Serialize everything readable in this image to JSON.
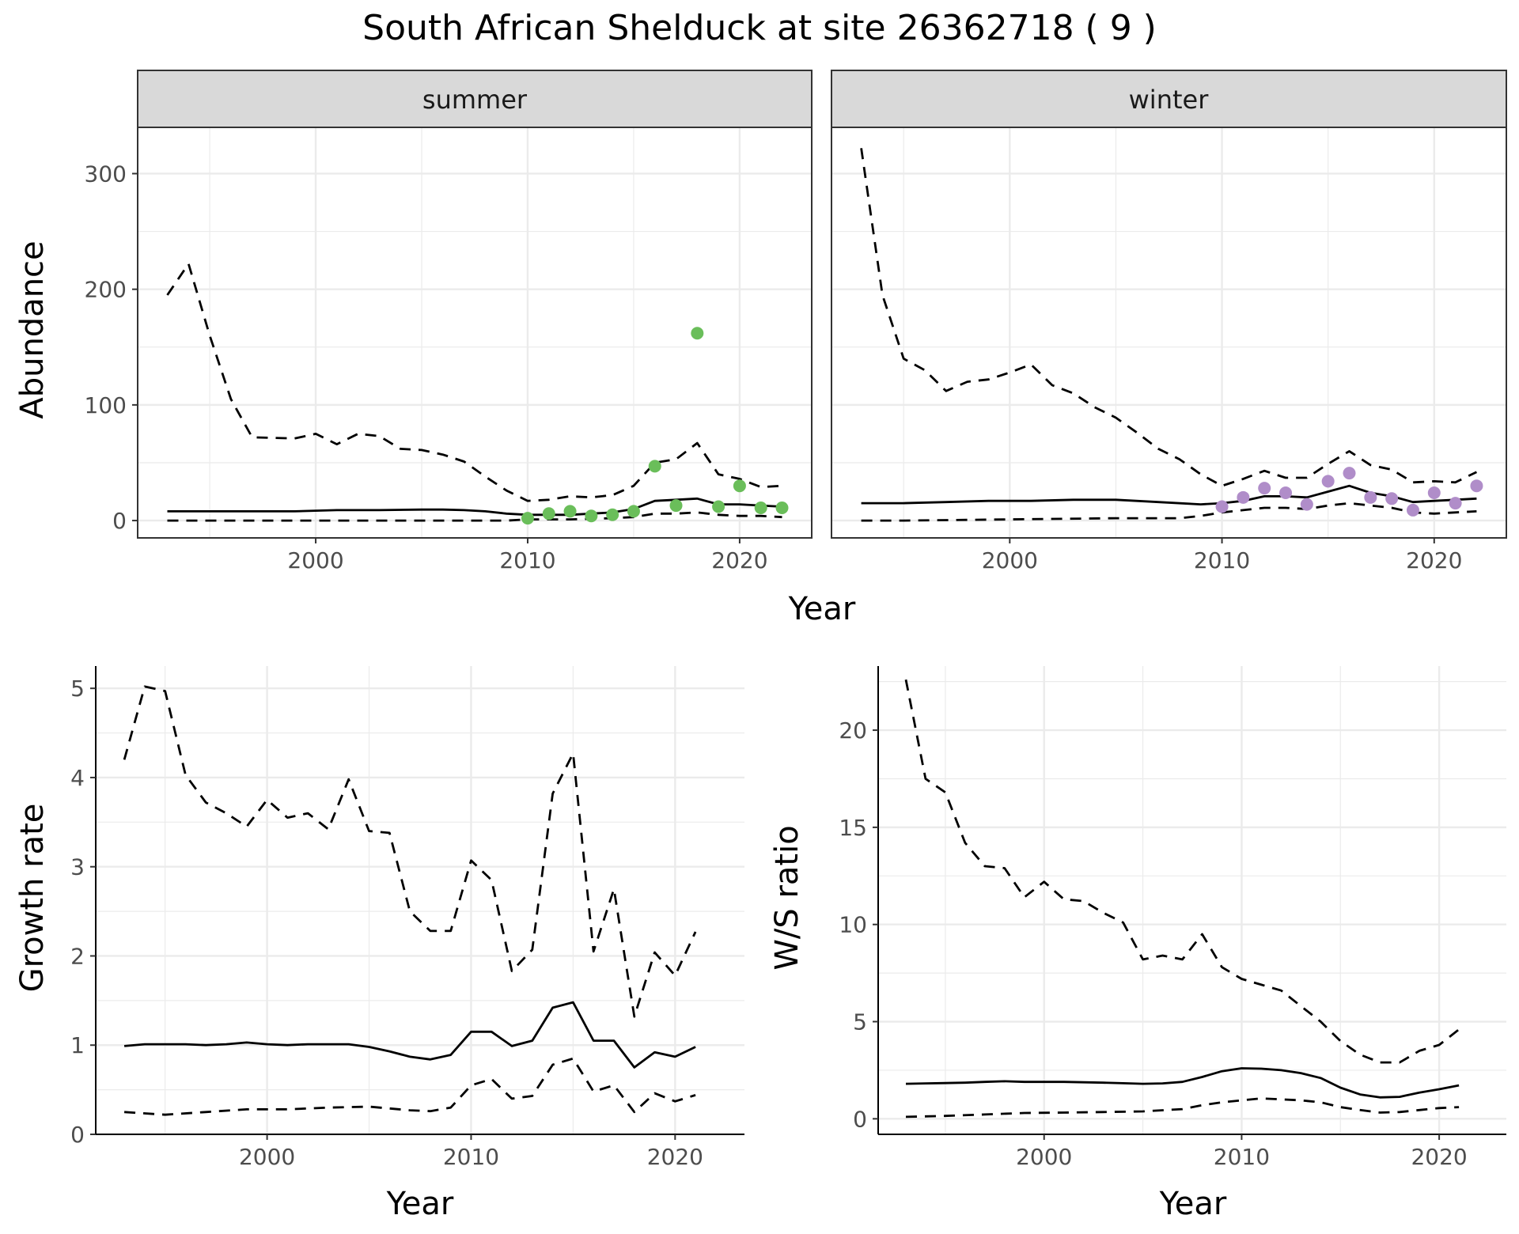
{
  "page": {
    "title": "South African Shelduck at site 26362718 ( 9 )"
  },
  "colors": {
    "summer_points": "#6abe5a",
    "winter_points": "#b08dc9",
    "lines": "#000000"
  },
  "chart_data": [
    {
      "id": "abundance",
      "type": "line",
      "ylabel": "Abundance",
      "xlabel": "Year",
      "xlim": [
        1991.6,
        2023.4
      ],
      "ylim": [
        -15,
        340
      ],
      "xticks": [
        2000,
        2010,
        2020
      ],
      "yticks": [
        0,
        100,
        200,
        300
      ],
      "grid": true,
      "facets": [
        {
          "name": "summer",
          "point_color": "#6abe5a",
          "mean": {
            "x": [
              1993,
              1995,
              1997,
              1999,
              2001,
              2003,
              2005,
              2006,
              2007,
              2008,
              2009,
              2010,
              2011,
              2012,
              2013,
              2014,
              2015,
              2016,
              2017,
              2018,
              2019,
              2020,
              2021,
              2022
            ],
            "y": [
              8,
              8,
              8,
              8,
              9,
              9,
              9.5,
              9.5,
              9,
              8,
              6,
              5,
              5,
              5,
              6,
              7,
              10,
              17,
              18,
              19,
              14,
              14,
              13,
              12
            ]
          },
          "lower": {
            "x": [
              1993,
              2000,
              2009,
              2010,
              2012,
              2014,
              2015,
              2016,
              2017,
              2018,
              2019,
              2020,
              2021,
              2022
            ],
            "y": [
              0,
              0,
              0,
              1,
              1,
              2,
              3,
              6,
              6,
              7,
              5,
              4,
              4,
              3
            ]
          },
          "upper": {
            "x": [
              1993,
              1994,
              1995,
              1996,
              1997,
              1999,
              2000,
              2001,
              2002,
              2003,
              2004,
              2005,
              2006,
              2007,
              2008,
              2009,
              2010,
              2011,
              2012,
              2013,
              2014,
              2015,
              2016,
              2017,
              2018,
              2019,
              2020,
              2021,
              2022
            ],
            "y": [
              195,
              222,
              160,
              105,
              72,
              71,
              75,
              66,
              75,
              73,
              62,
              61,
              57,
              51,
              38,
              26,
              17,
              18,
              21,
              20,
              22,
              30,
              50,
              53,
              67,
              40,
              36,
              29,
              30
            ]
          },
          "observed": {
            "x": [
              2010,
              2011,
              2012,
              2013,
              2014,
              2015,
              2016,
              2017,
              2018,
              2019,
              2020,
              2021,
              2022
            ],
            "y": [
              2,
              6,
              8,
              4,
              5,
              8,
              47,
              13,
              162,
              12,
              30,
              11,
              11
            ]
          }
        },
        {
          "name": "winter",
          "point_color": "#b08dc9",
          "mean": {
            "x": [
              1993,
              1995,
              1997,
              1999,
              2001,
              2003,
              2005,
              2007,
              2009,
              2010,
              2011,
              2012,
              2013,
              2014,
              2015,
              2016,
              2017,
              2018,
              2019,
              2020,
              2021,
              2022
            ],
            "y": [
              15,
              15,
              16,
              17,
              17,
              18,
              18,
              16,
              14,
              15,
              17,
              21,
              21,
              20,
              25,
              30,
              24,
              21,
              16,
              17,
              18,
              19
            ]
          },
          "lower": {
            "x": [
              1993,
              1995,
              2000,
              2005,
              2008,
              2009,
              2010,
              2011,
              2012,
              2013,
              2014,
              2015,
              2016,
              2017,
              2018,
              2019,
              2020,
              2021,
              2022
            ],
            "y": [
              0,
              0,
              1,
              2,
              2,
              4,
              7,
              9,
              11,
              11,
              10,
              13,
              15,
              13,
              11,
              7,
              6,
              7,
              8
            ]
          },
          "upper": {
            "x": [
              1993,
              1994,
              1995,
              1996,
              1997,
              1998,
              1999,
              2000,
              2001,
              2002,
              2003,
              2004,
              2005,
              2006,
              2007,
              2008,
              2009,
              2010,
              2011,
              2012,
              2013,
              2014,
              2015,
              2016,
              2017,
              2018,
              2019,
              2020,
              2021,
              2022
            ],
            "y": [
              322,
              195,
              140,
              130,
              112,
              120,
              122,
              128,
              135,
              117,
              110,
              98,
              89,
              76,
              62,
              53,
              40,
              30,
              36,
              43,
              37,
              37,
              49,
              60,
              48,
              44,
              33,
              34,
              33,
              42
            ]
          },
          "observed": {
            "x": [
              2010,
              2011,
              2012,
              2013,
              2014,
              2015,
              2016,
              2017,
              2018,
              2019,
              2020,
              2021,
              2022
            ],
            "y": [
              12,
              20,
              28,
              24,
              14,
              34,
              41,
              20,
              19,
              9,
              24,
              15,
              30
            ]
          }
        }
      ]
    },
    {
      "id": "growth",
      "type": "line",
      "ylabel": "Growth rate",
      "xlabel": "Year",
      "xlim": [
        1991.6,
        2023.4
      ],
      "ylim": [
        0,
        5.25
      ],
      "xticks": [
        2000,
        2010,
        2020
      ],
      "yticks": [
        0,
        1,
        2,
        3,
        4,
        5
      ],
      "grid": true,
      "mean": {
        "x": [
          1993,
          1994,
          1995,
          1996,
          1997,
          1998,
          1999,
          2000,
          2001,
          2002,
          2003,
          2004,
          2005,
          2006,
          2007,
          2008,
          2009,
          2010,
          2011,
          2012,
          2013,
          2014,
          2015,
          2016,
          2017,
          2018,
          2019,
          2020,
          2021
        ],
        "y": [
          0.99,
          1.01,
          1.01,
          1.01,
          1.0,
          1.01,
          1.03,
          1.01,
          1.0,
          1.01,
          1.01,
          1.01,
          0.98,
          0.93,
          0.87,
          0.84,
          0.89,
          1.15,
          1.15,
          0.99,
          1.05,
          1.42,
          1.48,
          1.05,
          1.05,
          0.75,
          0.92,
          0.87,
          0.98
        ]
      },
      "lower": {
        "x": [
          1993,
          1995,
          1997,
          1999,
          2001,
          2003,
          2005,
          2007,
          2008,
          2009,
          2010,
          2011,
          2012,
          2013,
          2014,
          2015,
          2016,
          2017,
          2018,
          2019,
          2020,
          2021
        ],
        "y": [
          0.25,
          0.22,
          0.25,
          0.28,
          0.28,
          0.3,
          0.31,
          0.27,
          0.26,
          0.3,
          0.55,
          0.62,
          0.4,
          0.43,
          0.78,
          0.85,
          0.48,
          0.55,
          0.25,
          0.46,
          0.37,
          0.44
        ]
      },
      "upper": {
        "x": [
          1993,
          1994,
          1995,
          1996,
          1997,
          1998,
          1999,
          2000,
          2001,
          2002,
          2003,
          2004,
          2005,
          2006,
          2007,
          2008,
          2009,
          2010,
          2011,
          2012,
          2013,
          2014,
          2015,
          2016,
          2017,
          2018,
          2019,
          2020,
          2021
        ],
        "y": [
          4.2,
          5.02,
          4.97,
          4.03,
          3.72,
          3.6,
          3.45,
          3.75,
          3.55,
          3.6,
          3.42,
          3.98,
          3.4,
          3.38,
          2.5,
          2.28,
          2.28,
          3.07,
          2.85,
          1.83,
          2.07,
          3.82,
          4.27,
          2.05,
          2.75,
          1.32,
          2.04,
          1.78,
          2.27
        ]
      }
    },
    {
      "id": "ws_ratio",
      "type": "line",
      "ylabel": "W/S ratio",
      "xlabel": "Year",
      "xlim": [
        1991.6,
        2023.4
      ],
      "ylim": [
        -0.8,
        23.3
      ],
      "xticks": [
        2000,
        2010,
        2020
      ],
      "yticks": [
        0,
        5,
        10,
        15,
        20
      ],
      "grid": true,
      "mean": {
        "x": [
          1993,
          1994,
          1995,
          1996,
          1997,
          1998,
          1999,
          2000,
          2001,
          2002,
          2003,
          2004,
          2005,
          2006,
          2007,
          2008,
          2009,
          2010,
          2011,
          2012,
          2013,
          2014,
          2015,
          2016,
          2017,
          2018,
          2019,
          2020,
          2021
        ],
        "y": [
          1.8,
          1.82,
          1.84,
          1.86,
          1.9,
          1.93,
          1.9,
          1.9,
          1.9,
          1.88,
          1.86,
          1.83,
          1.8,
          1.82,
          1.9,
          2.15,
          2.45,
          2.6,
          2.58,
          2.5,
          2.35,
          2.1,
          1.6,
          1.25,
          1.1,
          1.13,
          1.35,
          1.52,
          1.72
        ]
      },
      "lower": {
        "x": [
          1993,
          1995,
          1997,
          1999,
          2001,
          2003,
          2005,
          2007,
          2008,
          2009,
          2010,
          2011,
          2012,
          2013,
          2014,
          2015,
          2016,
          2017,
          2018,
          2019,
          2020,
          2021
        ],
        "y": [
          0.1,
          0.15,
          0.22,
          0.3,
          0.32,
          0.35,
          0.38,
          0.5,
          0.7,
          0.85,
          0.95,
          1.05,
          1.0,
          0.95,
          0.85,
          0.6,
          0.45,
          0.32,
          0.35,
          0.45,
          0.55,
          0.6
        ]
      },
      "upper": {
        "x": [
          1993,
          1994,
          1995,
          1996,
          1997,
          1998,
          1999,
          2000,
          2001,
          2002,
          2003,
          2004,
          2005,
          2006,
          2007,
          2008,
          2009,
          2010,
          2011,
          2012,
          2013,
          2014,
          2015,
          2016,
          2017,
          2018,
          2019,
          2020,
          2021
        ],
        "y": [
          22.6,
          17.5,
          16.8,
          14.2,
          13.0,
          12.9,
          11.4,
          12.2,
          11.3,
          11.2,
          10.6,
          10.1,
          8.2,
          8.4,
          8.2,
          9.5,
          7.8,
          7.2,
          6.9,
          6.6,
          5.8,
          5.0,
          4.0,
          3.3,
          2.9,
          2.9,
          3.5,
          3.8,
          4.6
        ]
      }
    }
  ]
}
